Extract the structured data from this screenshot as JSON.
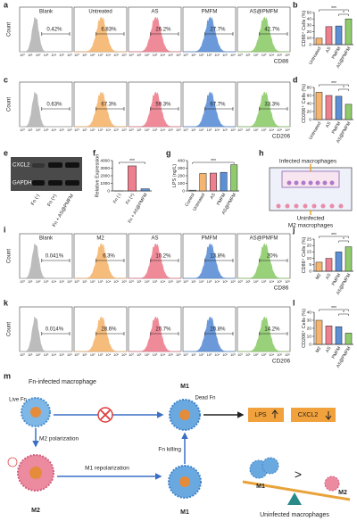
{
  "panel_letters": [
    "a",
    "b",
    "c",
    "d",
    "e",
    "f",
    "g",
    "h",
    "i",
    "j",
    "k",
    "l",
    "m"
  ],
  "flow_rows": [
    {
      "groups": [
        "Blank",
        "Untreated",
        "AS",
        "PMFM",
        "AS@PMFM"
      ],
      "percents": [
        "0.42%",
        "6.83%",
        "26.2%",
        "27.7%",
        "42.7%"
      ],
      "xlabel": "CD86",
      "ylabel": "Count",
      "colors": [
        "#b5b5b5",
        "#f6b56e",
        "#ee7f8f",
        "#5b8fd6",
        "#8fcb6c"
      ],
      "xticks": [
        "10⁰",
        "10¹",
        "10²",
        "10³",
        "10⁴",
        "10⁵",
        "10⁶"
      ]
    },
    {
      "percents": [
        "0.63%",
        "67.3%",
        "59.3%",
        "67.7%",
        "33.3%"
      ],
      "xlabel": "CD206",
      "ylabel": "Count",
      "colors": [
        "#b5b5b5",
        "#f6b56e",
        "#ee7f8f",
        "#5b8fd6",
        "#8fcb6c"
      ],
      "xticks": [
        "10⁰",
        "10¹",
        "10²",
        "10³",
        "10⁴",
        "10⁵",
        "10⁶"
      ]
    },
    {
      "groups": [
        "Blank",
        "M2",
        "AS",
        "PMFM",
        "AS@PMFM"
      ],
      "percents": [
        "0.041%",
        "6.3%",
        "10.2%",
        "13.8%",
        "20%"
      ],
      "xlabel": "CD86",
      "ylabel": "Count",
      "colors": [
        "#b5b5b5",
        "#f6b56e",
        "#ee7f8f",
        "#5b8fd6",
        "#8fcb6c"
      ],
      "xticks": [
        "10⁰",
        "10¹",
        "10²",
        "10³",
        "10⁴",
        "10⁵",
        "10⁶"
      ]
    },
    {
      "percents": [
        "0.014%",
        "28.6%",
        "20.7%",
        "20.8%",
        "14.2%"
      ],
      "xlabel": "CD206",
      "ylabel": "Count",
      "colors": [
        "#b5b5b5",
        "#f6b56e",
        "#ee7f8f",
        "#5b8fd6",
        "#8fcb6c"
      ],
      "xticks": [
        "10⁰",
        "10¹",
        "10²",
        "10³",
        "10⁴",
        "10⁵",
        "10⁶"
      ]
    }
  ],
  "chart_data": [
    {
      "type": "bar",
      "ylabel": "CD86⁺ Cells (%)",
      "categories": [
        "Untreated",
        "AS",
        "PMFM",
        "AS@PMFM"
      ],
      "values": [
        10,
        28,
        29,
        40
      ],
      "colors": [
        "#f6b56e",
        "#ee7f8f",
        "#5b8fd6",
        "#8fcb6c"
      ],
      "ylim": [
        0,
        50
      ],
      "yticks": [
        0,
        10,
        20,
        30,
        40,
        50
      ],
      "annotations": [
        "***",
        "*"
      ]
    },
    {
      "type": "bar",
      "ylabel": "CD206⁺ Cells (%)",
      "categories": [
        "Untreated",
        "AS",
        "PMFM",
        "AS@PMFM"
      ],
      "values": [
        68,
        60,
        58,
        38
      ],
      "colors": [
        "#f6b56e",
        "#ee7f8f",
        "#5b8fd6",
        "#8fcb6c"
      ],
      "ylim": [
        0,
        80
      ],
      "yticks": [
        0,
        20,
        40,
        60,
        80
      ],
      "annotations": [
        "***",
        "*"
      ]
    },
    {
      "type": "bar",
      "ylabel": "Relative Expression",
      "categories": [
        "Fn (-)",
        "Fn (+)",
        "Fn + AS@PMFM"
      ],
      "values": [
        1,
        3300,
        280
      ],
      "colors": [
        "#b5b5b5",
        "#ee7f8f",
        "#5b8fd6"
      ],
      "ylim": [
        0,
        4000
      ],
      "yticks": [
        0,
        1000,
        2000,
        3000,
        4000
      ],
      "annotations": [
        null,
        "***"
      ]
    },
    {
      "type": "bar",
      "ylabel": "LPS (ng/L)",
      "categories": [
        "Control",
        "Untreated",
        "AS",
        "PMFM",
        "AS@PMFM"
      ],
      "values": [
        10,
        230,
        235,
        245,
        345
      ],
      "colors": [
        "#b5b5b5",
        "#f6b56e",
        "#ee7f8f",
        "#5b8fd6",
        "#8fcb6c"
      ],
      "ylim": [
        0,
        400
      ],
      "yticks": [
        0,
        100,
        200,
        300,
        400
      ],
      "annotations": [
        null,
        "***"
      ]
    },
    {
      "type": "bar",
      "ylabel": "CD86⁺ Cells (%)",
      "categories": [
        "M2",
        "AS",
        "PMFM",
        "AS@PMFM"
      ],
      "values": [
        7,
        10,
        15,
        19
      ],
      "colors": [
        "#f6b56e",
        "#ee7f8f",
        "#5b8fd6",
        "#8fcb6c"
      ],
      "ylim": [
        0,
        25
      ],
      "yticks": [
        0,
        5,
        10,
        15,
        20,
        25
      ],
      "annotations": [
        "***",
        "*"
      ]
    },
    {
      "type": "bar",
      "ylabel": "CD206⁺ Cells (%)",
      "categories": [
        "M2",
        "AS",
        "PMFM",
        "AS@PMFM"
      ],
      "values": [
        30,
        23,
        22,
        14
      ],
      "colors": [
        "#f6b56e",
        "#ee7f8f",
        "#5b8fd6",
        "#8fcb6c"
      ],
      "ylim": [
        0,
        40
      ],
      "yticks": [
        0,
        10,
        20,
        30,
        40
      ],
      "annotations": [
        "***",
        "*"
      ]
    }
  ],
  "blot": {
    "bands": [
      "CXCL2",
      "GAPDH"
    ],
    "lanes": [
      "Fn (-)",
      "Fn (+)",
      "Fn + AS@PMFM"
    ]
  },
  "diagram_h": {
    "top": "Infected macrophages",
    "bottom_1": "Uninfected",
    "bottom_2": "M2 macrophages"
  },
  "diagram_m": {
    "infected": "Fn-infected macrophage",
    "live": "Live Fn",
    "m2_pol": "M2 polarization",
    "m2": "M2",
    "m1_repol": "M1 repolarization",
    "m1_bottom": "M1",
    "m1_top": "M1",
    "dead": "Dead Fn",
    "killing": "Fn killing",
    "lps": "LPS",
    "cxcl2": "CXCL2",
    "m1_scale": "M1",
    "m2_scale": "M2",
    "compare": ">",
    "uninfected": "Uninfected  macrophages"
  }
}
